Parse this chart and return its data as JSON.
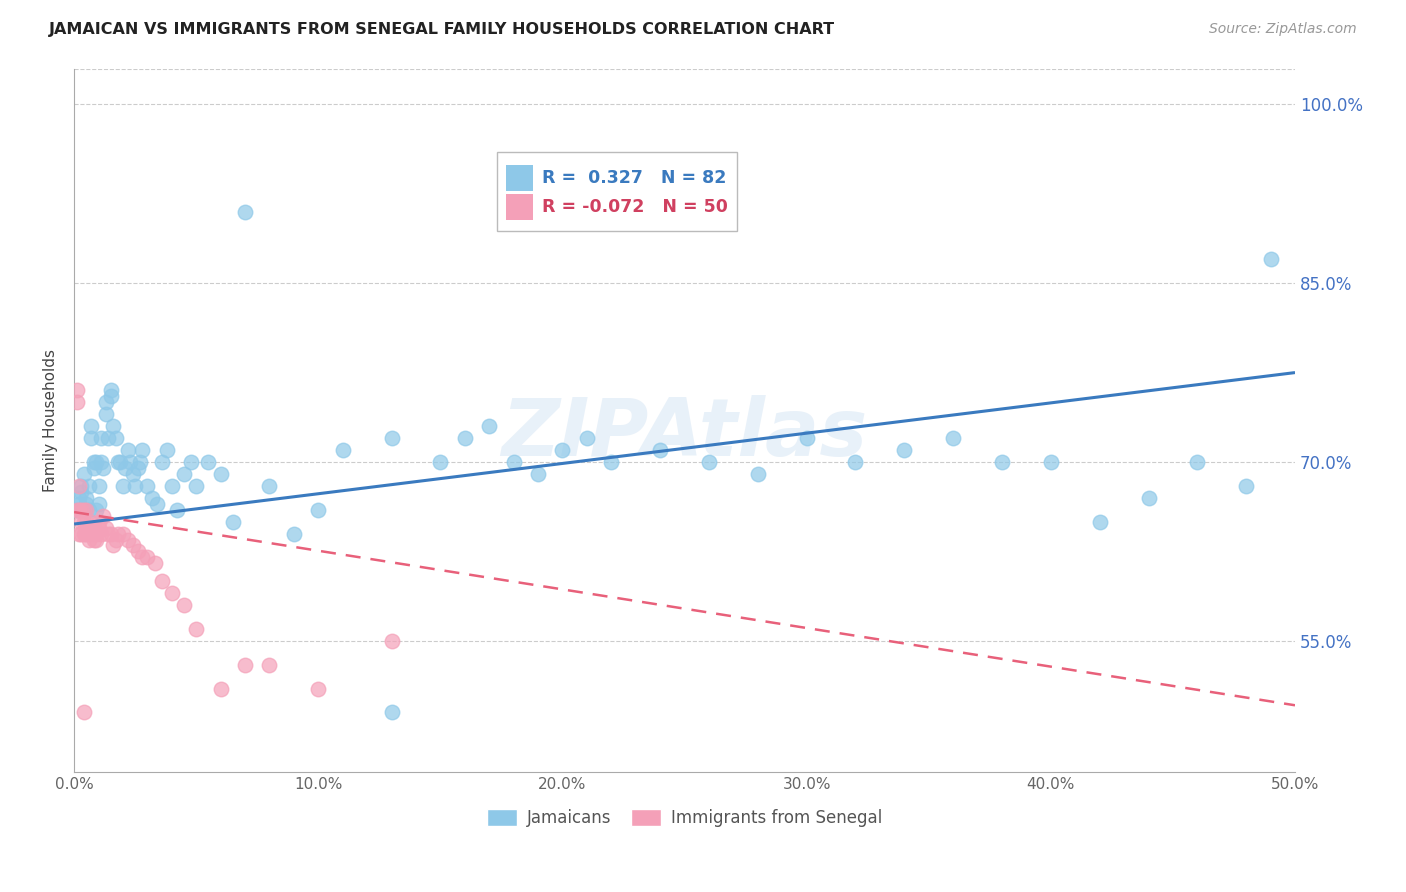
{
  "title": "JAMAICAN VS IMMIGRANTS FROM SENEGAL FAMILY HOUSEHOLDS CORRELATION CHART",
  "source": "Source: ZipAtlas.com",
  "ylabel": "Family Households",
  "x_min": 0.0,
  "x_max": 0.5,
  "y_min": 0.44,
  "y_max": 1.03,
  "yticks": [
    0.55,
    0.7,
    0.85,
    1.0
  ],
  "ytick_labels": [
    "55.0%",
    "70.0%",
    "85.0%",
    "100.0%"
  ],
  "xticks": [
    0.0,
    0.1,
    0.2,
    0.3,
    0.4,
    0.5
  ],
  "xtick_labels": [
    "0.0%",
    "10.0%",
    "20.0%",
    "30.0%",
    "40.0%",
    "50.0%"
  ],
  "r_jamaican": 0.327,
  "n_jamaican": 82,
  "r_senegal": -0.072,
  "n_senegal": 50,
  "legend_label_1": "Jamaicans",
  "legend_label_2": "Immigrants from Senegal",
  "blue_color": "#8ec8e8",
  "pink_color": "#f4a0b8",
  "blue_line_color": "#3a7abf",
  "pink_line_color": "#e8607a",
  "watermark_text": "ZIPAtlas",
  "jamaican_x": [
    0.001,
    0.002,
    0.002,
    0.003,
    0.003,
    0.004,
    0.004,
    0.005,
    0.005,
    0.006,
    0.006,
    0.007,
    0.007,
    0.008,
    0.008,
    0.009,
    0.009,
    0.01,
    0.01,
    0.011,
    0.011,
    0.012,
    0.013,
    0.013,
    0.014,
    0.015,
    0.015,
    0.016,
    0.017,
    0.018,
    0.019,
    0.02,
    0.021,
    0.022,
    0.023,
    0.024,
    0.025,
    0.026,
    0.027,
    0.028,
    0.03,
    0.032,
    0.034,
    0.036,
    0.038,
    0.04,
    0.042,
    0.045,
    0.048,
    0.05,
    0.055,
    0.06,
    0.065,
    0.07,
    0.08,
    0.09,
    0.1,
    0.11,
    0.13,
    0.15,
    0.16,
    0.17,
    0.18,
    0.19,
    0.2,
    0.21,
    0.22,
    0.24,
    0.26,
    0.28,
    0.3,
    0.32,
    0.34,
    0.36,
    0.38,
    0.4,
    0.42,
    0.44,
    0.46,
    0.48,
    0.49,
    0.13
  ],
  "jamaican_y": [
    0.66,
    0.67,
    0.665,
    0.68,
    0.675,
    0.69,
    0.66,
    0.665,
    0.67,
    0.68,
    0.66,
    0.72,
    0.73,
    0.7,
    0.695,
    0.7,
    0.66,
    0.68,
    0.665,
    0.7,
    0.72,
    0.695,
    0.74,
    0.75,
    0.72,
    0.76,
    0.755,
    0.73,
    0.72,
    0.7,
    0.7,
    0.68,
    0.695,
    0.71,
    0.7,
    0.69,
    0.68,
    0.695,
    0.7,
    0.71,
    0.68,
    0.67,
    0.665,
    0.7,
    0.71,
    0.68,
    0.66,
    0.69,
    0.7,
    0.68,
    0.7,
    0.69,
    0.65,
    0.91,
    0.68,
    0.64,
    0.66,
    0.71,
    0.72,
    0.7,
    0.72,
    0.73,
    0.7,
    0.69,
    0.71,
    0.72,
    0.7,
    0.71,
    0.7,
    0.69,
    0.72,
    0.7,
    0.71,
    0.72,
    0.7,
    0.7,
    0.65,
    0.67,
    0.7,
    0.68,
    0.87,
    0.49
  ],
  "senegal_x": [
    0.001,
    0.001,
    0.001,
    0.002,
    0.002,
    0.002,
    0.003,
    0.003,
    0.003,
    0.004,
    0.004,
    0.004,
    0.005,
    0.005,
    0.005,
    0.006,
    0.006,
    0.007,
    0.007,
    0.008,
    0.008,
    0.009,
    0.009,
    0.01,
    0.01,
    0.011,
    0.012,
    0.013,
    0.014,
    0.015,
    0.016,
    0.017,
    0.018,
    0.02,
    0.022,
    0.024,
    0.026,
    0.028,
    0.03,
    0.033,
    0.036,
    0.04,
    0.045,
    0.05,
    0.06,
    0.07,
    0.08,
    0.1,
    0.13,
    0.004
  ],
  "senegal_y": [
    0.75,
    0.76,
    0.66,
    0.68,
    0.64,
    0.66,
    0.66,
    0.65,
    0.64,
    0.66,
    0.65,
    0.64,
    0.66,
    0.65,
    0.64,
    0.645,
    0.635,
    0.65,
    0.64,
    0.645,
    0.635,
    0.64,
    0.635,
    0.65,
    0.645,
    0.64,
    0.655,
    0.645,
    0.64,
    0.64,
    0.63,
    0.635,
    0.64,
    0.64,
    0.635,
    0.63,
    0.625,
    0.62,
    0.62,
    0.615,
    0.6,
    0.59,
    0.58,
    0.56,
    0.51,
    0.53,
    0.53,
    0.51,
    0.55,
    0.49
  ],
  "blue_trend_x": [
    0.0,
    0.5
  ],
  "blue_trend_y": [
    0.648,
    0.775
  ],
  "pink_trend_x": [
    0.0,
    0.5
  ],
  "pink_trend_y": [
    0.658,
    0.496
  ]
}
